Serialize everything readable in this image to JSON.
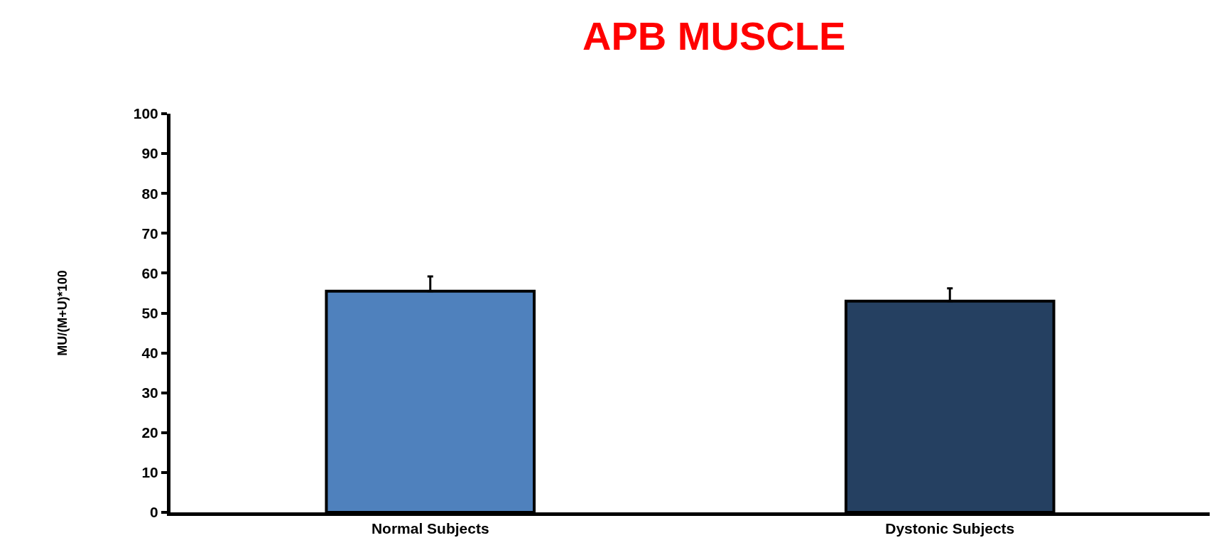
{
  "chart_data": {
    "type": "bar",
    "title": "APB MUSCLE",
    "ylabel": "MU/(M+U)*100",
    "categories": [
      "Normal Subjects",
      "Dystonic Subjects"
    ],
    "values": [
      55.5,
      53.0
    ],
    "colors": [
      "#4f81bd",
      "#254061"
    ],
    "errors": [
      [
        55.5,
        59.2
      ],
      [
        53.0,
        56.2
      ]
    ],
    "ylim": [
      0,
      100
    ],
    "yticks": [
      0,
      10,
      20,
      30,
      40,
      50,
      60,
      70,
      80,
      90,
      100
    ]
  }
}
